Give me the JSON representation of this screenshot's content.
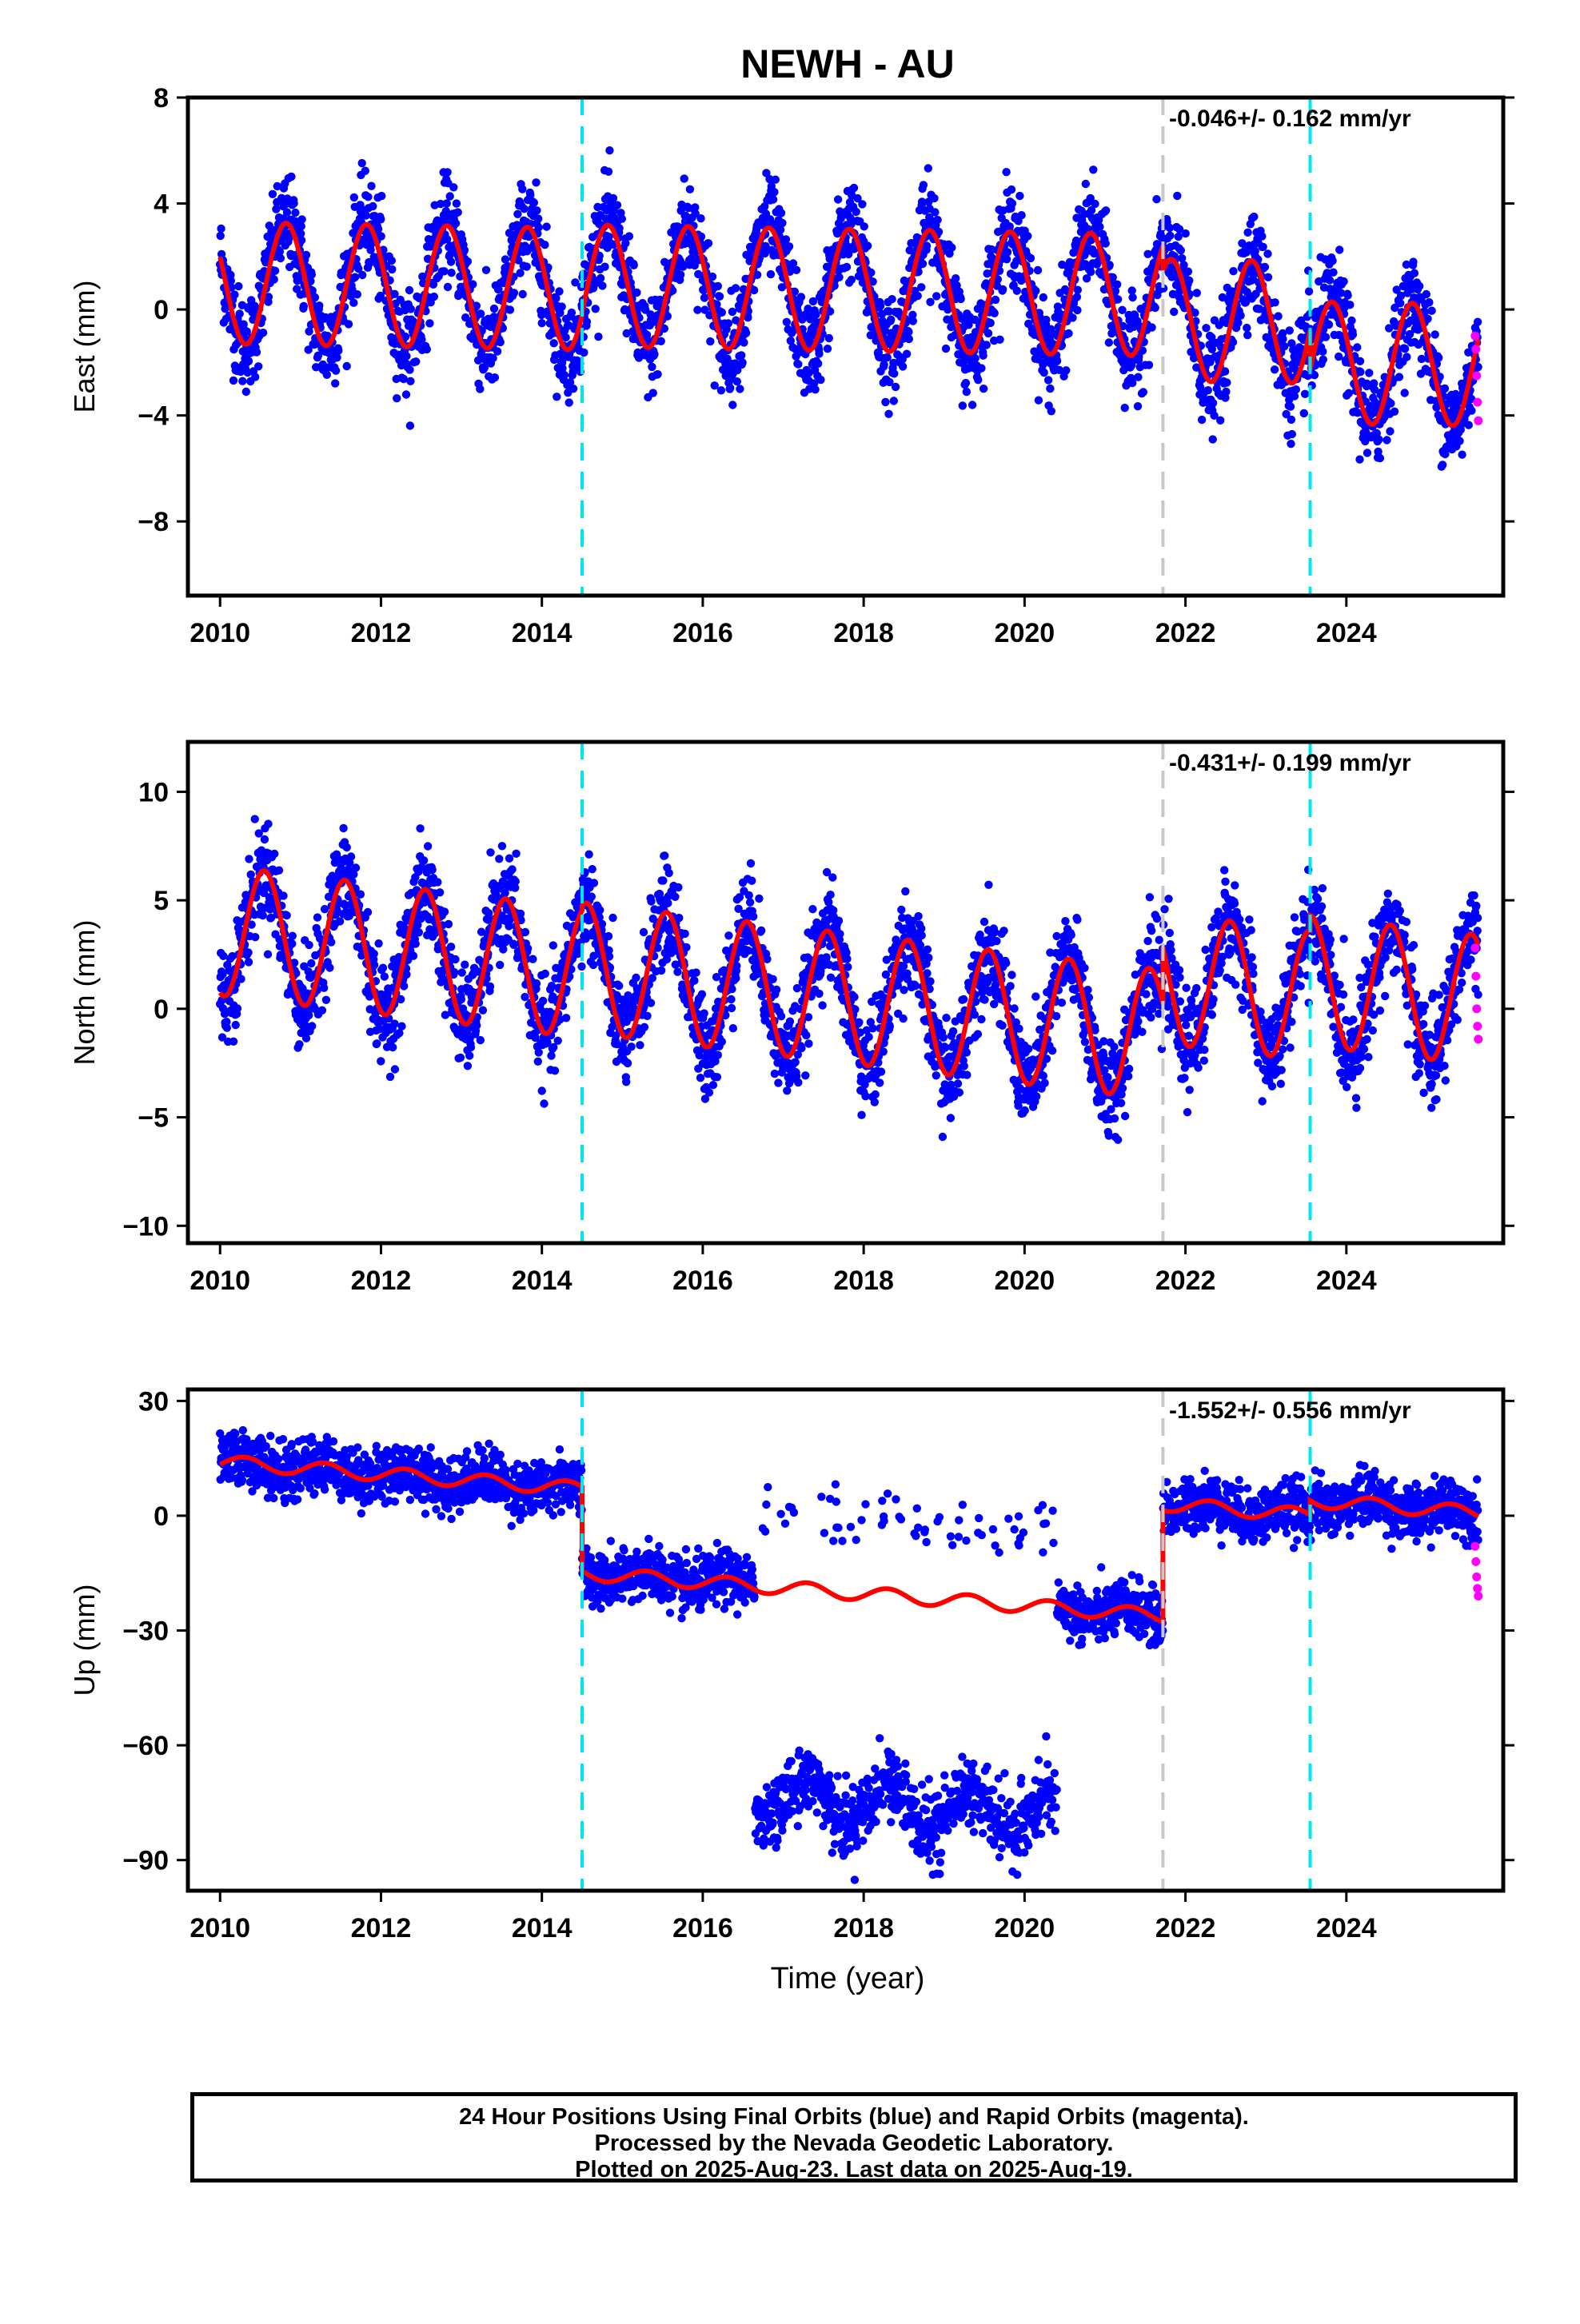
{
  "title": "NEWH - AU",
  "x_axis": {
    "label": "Time (year)",
    "min": 2009.6,
    "max": 2025.95,
    "ticks": [
      2010,
      2012,
      2014,
      2016,
      2018,
      2020,
      2022,
      2024
    ],
    "tick_labels": [
      "2010",
      "2012",
      "2014",
      "2016",
      "2018",
      "2020",
      "2022",
      "2024"
    ]
  },
  "event_lines": [
    {
      "year": 2014.5,
      "color": "#00e5f0",
      "style": "dashed"
    },
    {
      "year": 2021.72,
      "color": "#c8c8c8",
      "style": "dashed"
    },
    {
      "year": 2023.55,
      "color": "#00e5f0",
      "style": "dashed"
    }
  ],
  "colors": {
    "final_orbits": "#0000ff",
    "rapid_orbits": "#ff00ff",
    "model": "#ff0000"
  },
  "chart_data": [
    {
      "type": "scatter",
      "component": "East",
      "ylabel": "East (mm)",
      "ylim": [
        -10.8,
        8
      ],
      "yticks": [
        8,
        4,
        0,
        -4,
        -8
      ],
      "ytick_labels": [
        "8",
        "4",
        "0",
        "−4",
        "−8"
      ],
      "rate_text": "-0.046+/- 0.162 mm/yr",
      "series": [
        {
          "name": "Final Orbits",
          "color": "#0000ff",
          "model": {
            "amplitude": 2.3,
            "phase_peak": 0.82,
            "segments": [
              [
                2010.0,
                2014.5,
                1.0,
                -0.05
              ],
              [
                2014.5,
                2021.72,
                0.9,
                -0.05
              ],
              [
                2021.72,
                2023.55,
                -0.4,
                -0.05
              ],
              [
                2023.55,
                2025.64,
                -2.0,
                -0.05
              ]
            ],
            "noise": 0.9
          }
        },
        {
          "name": "Rapid Orbits",
          "color": "#ff00ff",
          "x": [
            2025.6,
            2025.61,
            2025.62,
            2025.63,
            2025.64
          ],
          "y": [
            -1.0,
            -1.5,
            -2.5,
            -3.5,
            -4.2
          ]
        }
      ],
      "model_line": {
        "name": "Model",
        "color": "#ff0000"
      }
    },
    {
      "type": "scatter",
      "component": "North",
      "ylabel": "North (mm)",
      "ylim": [
        -10.8,
        12.3
      ],
      "yticks": [
        10,
        5,
        0,
        -5,
        -10
      ],
      "ytick_labels": [
        "10",
        "5",
        "0",
        "−5",
        "−10"
      ],
      "rate_text": "-0.431+/- 0.199 mm/yr",
      "series": [
        {
          "name": "Final Orbits",
          "color": "#0000ff",
          "model": {
            "amplitude": 3.0,
            "phase_peak": 0.55,
            "segments": [
              [
                2010.0,
                2014.5,
                3.6,
                -0.43
              ],
              [
                2014.5,
                2021.72,
                1.9,
                -0.43
              ],
              [
                2021.72,
                2023.55,
                1.4,
                -0.43
              ],
              [
                2023.55,
                2025.64,
                1.3,
                -0.43
              ]
            ],
            "noise": 1.1
          }
        },
        {
          "name": "Rapid Orbits",
          "color": "#ff00ff",
          "x": [
            2025.6,
            2025.61,
            2025.62,
            2025.63,
            2025.64
          ],
          "y": [
            2.8,
            1.5,
            0.0,
            -0.8,
            -1.4
          ]
        }
      ],
      "model_line": {
        "name": "Model",
        "color": "#ff0000"
      }
    },
    {
      "type": "scatter",
      "component": "Up",
      "ylabel": "Up (mm)",
      "ylim": [
        -98,
        33
      ],
      "yticks": [
        30,
        0,
        -30,
        -60,
        -90
      ],
      "ytick_labels": [
        "30",
        "0",
        "−30",
        "−60",
        "−90"
      ],
      "rate_text": "-1.552+/- 0.556 mm/yr",
      "series": [
        {
          "name": "Final Orbits",
          "color": "#0000ff",
          "model": {
            "amplitude": 1.8,
            "phase_peak": 0.3,
            "segments": [
              [
                2010.0,
                2014.5,
                14.0,
                -1.55
              ],
              [
                2014.5,
                2021.72,
                -15.0,
                -1.55
              ],
              [
                2021.72,
                2023.55,
                3.0,
                -1.55
              ],
              [
                2023.55,
                2025.64,
                4.0,
                -1.55
              ]
            ],
            "noise": 3.5,
            "offset_cluster": {
              "from": 2016.65,
              "to": 2020.4,
              "center": -75,
              "wave": 6,
              "noise": 4.5
            }
          }
        },
        {
          "name": "Rapid Orbits",
          "color": "#ff00ff",
          "x": [
            2025.6,
            2025.61,
            2025.62,
            2025.63,
            2025.64
          ],
          "y": [
            -8.0,
            -12.0,
            -16.0,
            -19.0,
            -21.0
          ]
        }
      ],
      "model_line": {
        "name": "Model",
        "color": "#ff0000"
      }
    }
  ],
  "footer": {
    "line1": "24 Hour Positions Using Final Orbits (blue) and Rapid Orbits (magenta).",
    "line2": "Processed by the Nevada Geodetic Laboratory.",
    "line3": "Plotted on 2025-Aug-23. Last data on 2025-Aug-19."
  }
}
